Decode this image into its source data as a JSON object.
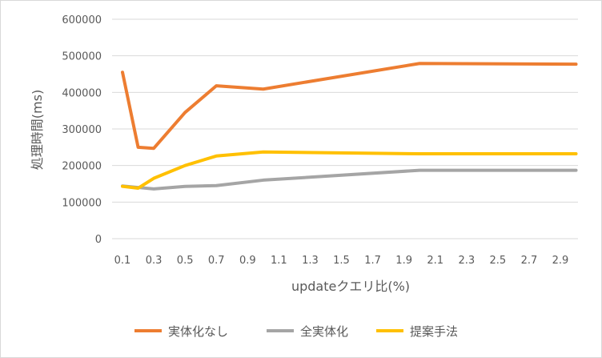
{
  "chart_data": {
    "type": "line",
    "xlabel": "updateクエリ比(%)",
    "ylabel": "処理時間(ms)",
    "ylim": [
      0,
      600000
    ],
    "y_ticks": [
      "0",
      "100000",
      "200000",
      "300000",
      "400000",
      "500000",
      "600000"
    ],
    "x_ticks": [
      "0.1",
      "0.3",
      "0.5",
      "0.7",
      "0.9",
      "1.1",
      "1.3",
      "1.5",
      "1.7",
      "1.9",
      "2.1",
      "2.3",
      "2.5",
      "2.7",
      "2.9"
    ],
    "x": [
      0.1,
      0.2,
      0.3,
      0.5,
      0.7,
      1.0,
      2.0,
      3.0
    ],
    "grid": true,
    "legend_position": "bottom",
    "series": [
      {
        "name": "実体化なし",
        "color": "#ed7d31",
        "values": [
          455000,
          250000,
          247000,
          345000,
          418000,
          409000,
          479000,
          477000
        ]
      },
      {
        "name": "全実体化",
        "color": "#a5a5a5",
        "values": [
          144000,
          140000,
          136000,
          143000,
          145000,
          160000,
          187000,
          187000
        ]
      },
      {
        "name": "提案手法",
        "color": "#ffc000",
        "values": [
          143000,
          138000,
          165000,
          200000,
          226000,
          237000,
          232000,
          232000
        ]
      }
    ]
  }
}
